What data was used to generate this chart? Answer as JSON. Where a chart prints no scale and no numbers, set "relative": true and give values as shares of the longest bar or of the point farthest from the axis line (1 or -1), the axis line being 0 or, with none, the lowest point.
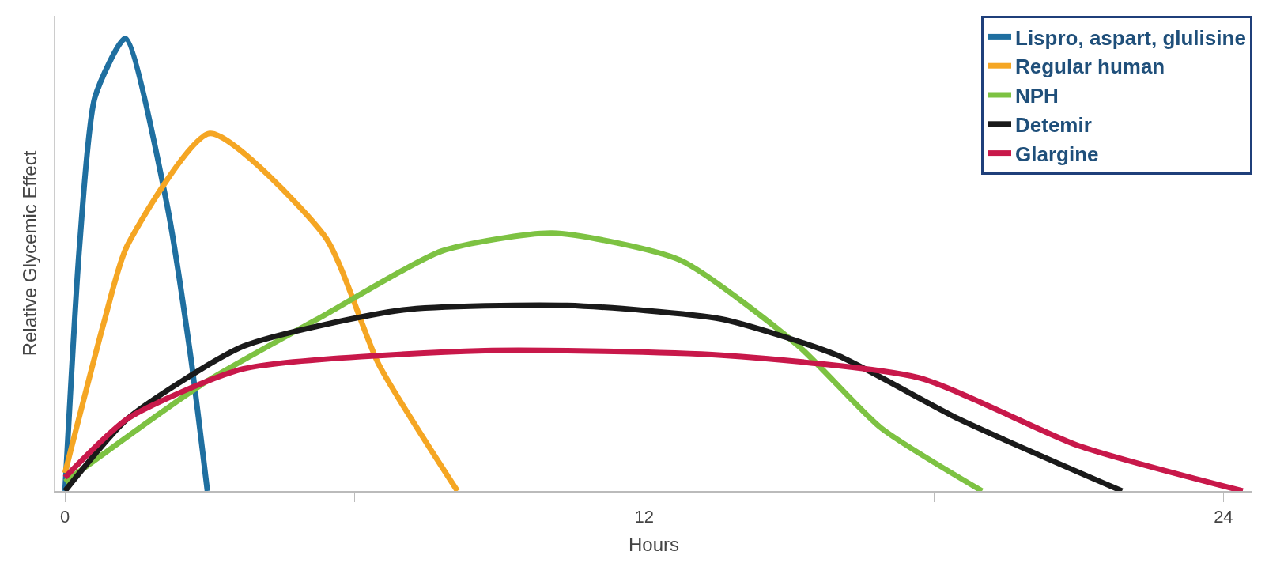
{
  "chart_data": {
    "type": "line",
    "relative": true,
    "xlabel": "Hours",
    "ylabel": "Relative Glycemic Effect",
    "xlim": [
      -0.2,
      24.6
    ],
    "xticks": [
      0,
      {
        "value": 6,
        "label": null
      },
      12,
      {
        "value": 18,
        "label": null
      },
      24
    ],
    "legend": "top right",
    "tick_labels": "x",
    "marker": "none",
    "line_style": "solid",
    "series": [
      {
        "name": "Lispro, aspart, glulisine",
        "color": "#1f6fa0",
        "x": [
          0,
          0.3,
          0.62,
          1.25,
          2.1,
          2.6,
          2.95
        ],
        "values": [
          0,
          0.54,
          0.87,
          1,
          0.64,
          0.3,
          0
        ]
      },
      {
        "name": "Regular human",
        "color": "#f5a623",
        "x": [
          0,
          0.8,
          1.28,
          3.0,
          5.4,
          6.5,
          8.13
        ],
        "values": [
          0.04,
          0.37,
          0.54,
          0.79,
          0.56,
          0.28,
          0
        ]
      },
      {
        "name": "NPH",
        "color": "#7dc242",
        "x": [
          0,
          2.9,
          5.4,
          7.8,
          10.1,
          12.75,
          15.2,
          16.9,
          19
        ],
        "values": [
          0.02,
          0.24,
          0.39,
          0.53,
          0.57,
          0.51,
          0.32,
          0.14,
          0
        ]
      },
      {
        "name": "Detemir",
        "color": "#1a1a1a",
        "x": [
          0,
          1.3,
          3.7,
          7,
          10.4,
          13.6,
          16,
          18.5,
          21.9
        ],
        "values": [
          0,
          0.16,
          0.32,
          0.4,
          0.41,
          0.38,
          0.3,
          0.16,
          0
        ]
      },
      {
        "name": "Glargine",
        "color": "#c8184a",
        "x": [
          0,
          1.3,
          3.7,
          8.7,
          13.6,
          17.7,
          21,
          24.4
        ],
        "values": [
          0.03,
          0.16,
          0.27,
          0.31,
          0.3,
          0.25,
          0.1,
          0
        ]
      }
    ]
  }
}
